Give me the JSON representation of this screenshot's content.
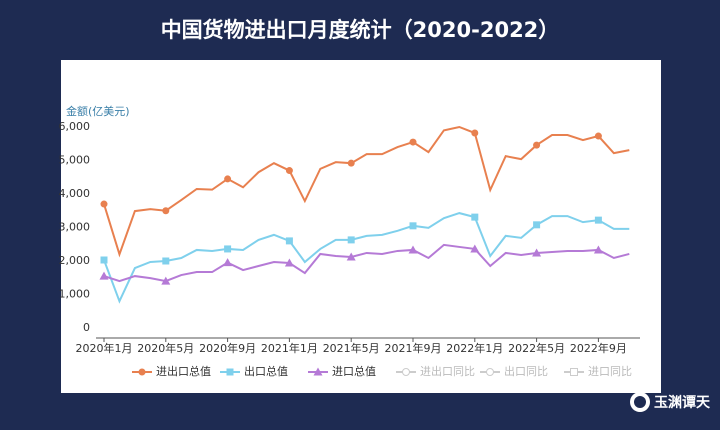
{
  "chart_data": {
    "type": "line",
    "title": "中国货物进出口月度统计（2020-2022）",
    "y_label": "金额(亿美元)",
    "categories": [
      "2020年1月",
      null,
      null,
      null,
      "2020年5月",
      null,
      null,
      null,
      "2020年9月",
      null,
      null,
      null,
      "2021年1月",
      null,
      null,
      null,
      "2021年5月",
      null,
      null,
      null,
      "2021年9月",
      null,
      null,
      null,
      "2022年1月",
      null,
      null,
      null,
      "2022年5月",
      null,
      null,
      null,
      "2022年9月",
      null,
      null
    ],
    "series": [
      {
        "name": "进出口总值",
        "color": "#e8804f",
        "marker": "circle",
        "values": [
          3700,
          2200,
          3490,
          3550,
          3500,
          3820,
          4150,
          4130,
          4450,
          4200,
          4650,
          4920,
          4700,
          3790,
          4750,
          4950,
          4920,
          5190,
          5190,
          5400,
          5550,
          5250,
          5900,
          6000,
          5820,
          4120,
          5130,
          5040,
          5460,
          5760,
          5760,
          5610,
          5730,
          5220,
          5310
        ]
      },
      {
        "name": "出口总值",
        "color": "#7fd0ec",
        "marker": "square",
        "values": [
          2030,
          800,
          1790,
          1970,
          2000,
          2090,
          2330,
          2300,
          2360,
          2330,
          2630,
          2780,
          2600,
          1970,
          2360,
          2630,
          2630,
          2750,
          2780,
          2900,
          3050,
          2990,
          3280,
          3430,
          3310,
          2150,
          2750,
          2690,
          3080,
          3340,
          3340,
          3160,
          3220,
          2960,
          2960
        ]
      },
      {
        "name": "进口总值",
        "color": "#b57ad6",
        "marker": "triangle",
        "values": [
          1550,
          1400,
          1550,
          1490,
          1400,
          1580,
          1670,
          1670,
          1950,
          1730,
          1850,
          1970,
          1940,
          1640,
          2210,
          2150,
          2120,
          2240,
          2210,
          2300,
          2330,
          2090,
          2480,
          2420,
          2360,
          1850,
          2240,
          2180,
          2240,
          2270,
          2300,
          2300,
          2330,
          2090,
          2210
        ]
      }
    ],
    "legend_inactive": [
      "进出口同比",
      "出口同比",
      "进口同比"
    ],
    "ylim": [
      0,
      6000
    ],
    "yticks": [
      0,
      {
        "value": 1000,
        "label": "1,000"
      },
      {
        "value": 2000,
        "label": "2,000"
      },
      {
        "value": 3000,
        "label": "3,000"
      },
      {
        "value": 4000,
        "label": "4,000"
      },
      {
        "value": 5000,
        "label": "5,000"
      },
      {
        "value": 6000,
        "label": "6,000"
      }
    ],
    "grid": false,
    "legend": "bottom"
  },
  "logo": {
    "text": "玉渊谭天"
  }
}
